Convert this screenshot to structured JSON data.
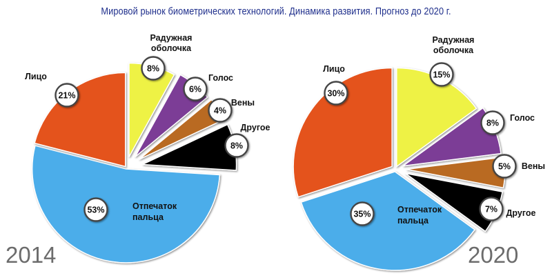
{
  "title": "Мировой рынок биометрических технологий. Динамика развития. Прогноз до 2020 г.",
  "chart_data": [
    {
      "type": "pie",
      "year": "2014",
      "slices": [
        {
          "label": "Радужная оболочка",
          "value": 8,
          "value_label": "8%",
          "color": "#eef245"
        },
        {
          "label": "Голос",
          "value": 6,
          "value_label": "6%",
          "color": "#7b3c96"
        },
        {
          "label": "Вены",
          "value": 4,
          "value_label": "4%",
          "color": "#b96a22"
        },
        {
          "label": "Другое",
          "value": 8,
          "value_label": "8%",
          "color": "#050505"
        },
        {
          "label": "Отпечаток пальца",
          "value": 53,
          "value_label": "53%",
          "color": "#4badea"
        },
        {
          "label": "Лицо",
          "value": 21,
          "value_label": "21%",
          "color": "#e4521f"
        }
      ]
    },
    {
      "type": "pie",
      "year": "2020",
      "slices": [
        {
          "label": "Радужная оболочка",
          "value": 15,
          "value_label": "15%",
          "color": "#eef245"
        },
        {
          "label": "Голос",
          "value": 8,
          "value_label": "8%",
          "color": "#7b3c96"
        },
        {
          "label": "Вены",
          "value": 5,
          "value_label": "5%",
          "color": "#b96a22"
        },
        {
          "label": "Другое",
          "value": 7,
          "value_label": "7%",
          "color": "#050505"
        },
        {
          "label": "Отпечаток пальца",
          "value": 35,
          "value_label": "35%",
          "color": "#4badea"
        },
        {
          "label": "Лицо",
          "value": 30,
          "value_label": "30%",
          "color": "#e4521f"
        }
      ]
    }
  ]
}
